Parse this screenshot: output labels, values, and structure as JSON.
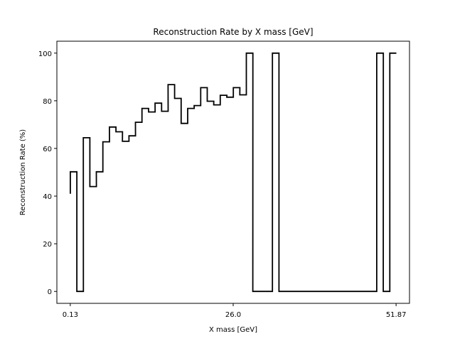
{
  "chart_data": {
    "type": "line",
    "drawstyle": "steps",
    "title": "Reconstruction Rate by X mass [GeV]",
    "xlabel": "X mass [GeV]",
    "ylabel": "Reconstruction Rate (%)",
    "xlim": [
      -2.0,
      54.0
    ],
    "ylim": [
      -5,
      105
    ],
    "xticks": [
      0.13,
      26.0,
      51.87
    ],
    "xtick_labels": [
      "0.13",
      "26.0",
      "51.87"
    ],
    "yticks": [
      0,
      20,
      40,
      60,
      80,
      100
    ],
    "ytick_labels": [
      "0",
      "20",
      "40",
      "60",
      "80",
      "100"
    ],
    "grid": false,
    "line_color": "#000000",
    "x": [
      0.13,
      1.17,
      2.2,
      3.24,
      4.27,
      5.31,
      6.34,
      7.38,
      8.41,
      9.45,
      10.48,
      11.52,
      12.56,
      13.59,
      14.63,
      15.66,
      16.7,
      17.73,
      18.77,
      19.8,
      20.84,
      21.88,
      22.91,
      23.95,
      24.98,
      26.02,
      27.05,
      28.09,
      29.12,
      30.16,
      31.19,
      32.23,
      33.27,
      34.3,
      35.34,
      36.37,
      37.41,
      38.44,
      39.48,
      40.51,
      41.55,
      42.59,
      43.62,
      44.66,
      45.69,
      46.73,
      47.76,
      48.8,
      49.83,
      50.87
    ],
    "y": [
      50.2,
      0,
      64.5,
      44,
      50.2,
      62.8,
      69,
      67,
      63,
      65.3,
      71,
      76.8,
      75.3,
      79,
      75.6,
      86.8,
      81,
      70.5,
      76.8,
      78,
      85.5,
      79.8,
      78.3,
      82.3,
      81.5,
      85.5,
      82.5,
      100,
      0,
      0,
      0,
      100,
      0,
      0,
      0,
      0,
      0,
      0,
      0,
      0,
      0,
      0,
      0,
      0,
      0,
      0,
      0,
      100,
      0,
      100
    ],
    "step_width": 1.04
  }
}
